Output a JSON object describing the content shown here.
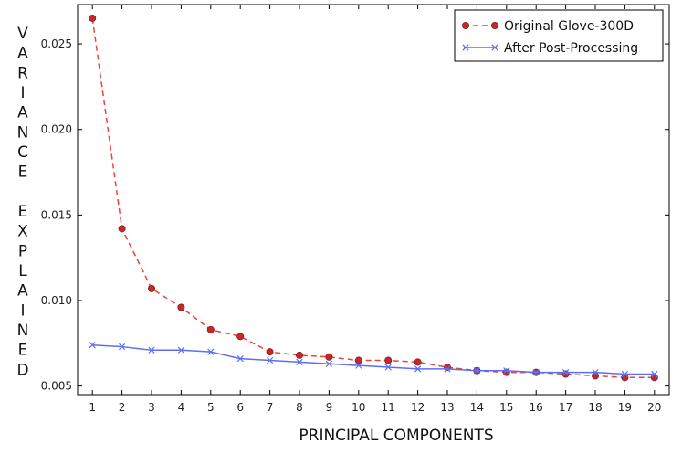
{
  "chart_data": {
    "type": "line",
    "title": "",
    "xlabel": "PRINCIPAL COMPONENTS",
    "ylabel": "VARIANCE EXPLAINED",
    "x": [
      1,
      2,
      3,
      4,
      5,
      6,
      7,
      8,
      9,
      10,
      11,
      12,
      13,
      14,
      15,
      16,
      17,
      18,
      19,
      20
    ],
    "xlim": [
      0.5,
      20.5
    ],
    "ylim": [
      0.0045,
      0.0273
    ],
    "yticks": [
      0.005,
      0.01,
      0.015,
      0.02,
      0.025
    ],
    "ytick_labels": [
      "0.005",
      "0.010",
      "0.015",
      "0.020",
      "0.025"
    ],
    "grid": false,
    "legend_position": "top-right",
    "series": [
      {
        "name": "Original Glove-300D",
        "color": "#e8443a",
        "marker_color": "#c62828",
        "line_style": "dashed",
        "marker": "circle",
        "values": [
          0.0265,
          0.0142,
          0.0107,
          0.0096,
          0.0083,
          0.0079,
          0.007,
          0.0068,
          0.0067,
          0.0065,
          0.0065,
          0.0064,
          0.0061,
          0.0059,
          0.0058,
          0.0058,
          0.0057,
          0.0056,
          0.0055,
          0.0055
        ]
      },
      {
        "name": "After Post-Processing",
        "color": "#5b6ef5",
        "marker_color": "#5b6ef5",
        "line_style": "solid",
        "marker": "x",
        "values": [
          0.0074,
          0.0073,
          0.0071,
          0.0071,
          0.007,
          0.0066,
          0.0065,
          0.0064,
          0.0063,
          0.0062,
          0.0061,
          0.006,
          0.006,
          0.0059,
          0.0059,
          0.0058,
          0.0058,
          0.0058,
          0.0057,
          0.0057
        ]
      }
    ]
  }
}
